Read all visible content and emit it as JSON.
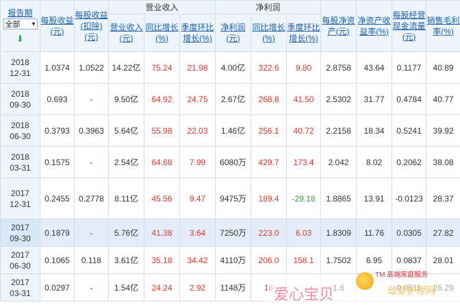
{
  "header": {
    "report_period": "报告期",
    "select_value": "全部",
    "eps": "每股收益(元)",
    "eps_deducted": "每股收益(扣除)(元)",
    "revenue_group": "营业收入",
    "revenue": "营业收入(元)",
    "rev_yoy": "同比增长(%)",
    "rev_qoq": "季度环比增长(%)",
    "net_profit_group": "净利润",
    "net_profit": "净利润(元)",
    "np_yoy": "同比增长(%)",
    "np_qoq": "季度环比增长(%)",
    "navps": "每股净资产(元)",
    "roe": "净资产收益率(%)",
    "ocfps": "每股经营现金流量(元)",
    "gross_margin": "销售毛利率(%)"
  },
  "rows": [
    {
      "year": "2018",
      "md": "12-31",
      "eps": "1.0374",
      "eps_d": "1.0522",
      "rev": "14.22亿",
      "rev_yoy": "75.24",
      "rev_qoq": "21.98",
      "np": "4.00亿",
      "np_yoy": "322.6",
      "np_qoq": "9.80",
      "navps": "2.8758",
      "roe": "43.64",
      "ocf": "0.1177",
      "gm": "40.89"
    },
    {
      "year": "2018",
      "md": "09-30",
      "eps": "0.693",
      "eps_d": "-",
      "rev": "9.50亿",
      "rev_yoy": "64.92",
      "rev_qoq": "24.75",
      "np": "2.67亿",
      "np_yoy": "268.8",
      "np_qoq": "41.50",
      "navps": "2.5302",
      "roe": "31.77",
      "ocf": "0.4784",
      "gm": "40.77"
    },
    {
      "year": "2018",
      "md": "06-30",
      "eps": "0.3793",
      "eps_d": "0.3963",
      "rev": "5.64亿",
      "rev_yoy": "55.98",
      "rev_qoq": "22.03",
      "np": "1.46亿",
      "np_yoy": "256.1",
      "np_qoq": "40.72",
      "navps": "2.2158",
      "roe": "18.34",
      "ocf": "0.5241",
      "gm": "39.92"
    },
    {
      "year": "2018",
      "md": "03-31",
      "eps": "0.1575",
      "eps_d": "-",
      "rev": "2.54亿",
      "rev_yoy": "64.68",
      "rev_qoq": "7.99",
      "np": "6080万",
      "np_yoy": "429.7",
      "np_qoq": "173.4",
      "navps": "2.042",
      "roe": "8.02",
      "ocf": "0.2062",
      "gm": "38.08"
    },
    {
      "year": "2017",
      "md": "12-31",
      "eps": "0.2455",
      "eps_d": "0.2778",
      "rev": "8.11亿",
      "rev_yoy": "45.56",
      "rev_qoq": "9.47",
      "np": "9475万",
      "np_yoy": "189.4",
      "np_qoq": "-29.18",
      "navps": "1.8865",
      "roe": "13.91",
      "ocf": "-0.0123",
      "gm": "28.37"
    },
    {
      "year": "2017",
      "md": "09-30",
      "eps": "0.1879",
      "eps_d": "-",
      "rev": "5.76亿",
      "rev_yoy": "41.38",
      "rev_qoq": "3.64",
      "np": "7250万",
      "np_yoy": "223.0",
      "np_qoq": "6.03",
      "navps": "1.8309",
      "roe": "11.76",
      "ocf": "0.0305",
      "gm": "27.82"
    },
    {
      "year": "2017",
      "md": "06-30",
      "eps": "0.1065",
      "eps_d": "0.118",
      "rev": "3.61亿",
      "rev_yoy": "35.18",
      "rev_qoq": "34.42",
      "np": "4110万",
      "np_yoy": "206.0",
      "np_qoq": "158.1",
      "navps": "1.7502",
      "roe": "6.95",
      "ocf": "0.0837",
      "gm": "28.01"
    },
    {
      "year": "2017",
      "md": "03-31",
      "eps": "0.0297",
      "eps_d": "-",
      "rev": "1.54亿",
      "rev_yoy": "24.24",
      "rev_qoq": "2.92",
      "np": "1148万",
      "np_yoy": "16",
      "np_qoq": "",
      "navps": "1.6",
      "roe": "",
      "ocf": "0.0511",
      "gm": "26.29"
    }
  ],
  "watermark": {
    "title": "爱心宝贝",
    "tagline": "TM 高端家庭服务",
    "sub": "母婴护理网"
  },
  "colors": {
    "positive": "#e0352b",
    "negative": "#2e9e4a",
    "header_bg": "#eef5fb",
    "highlight_bg": "#e3eefa"
  }
}
